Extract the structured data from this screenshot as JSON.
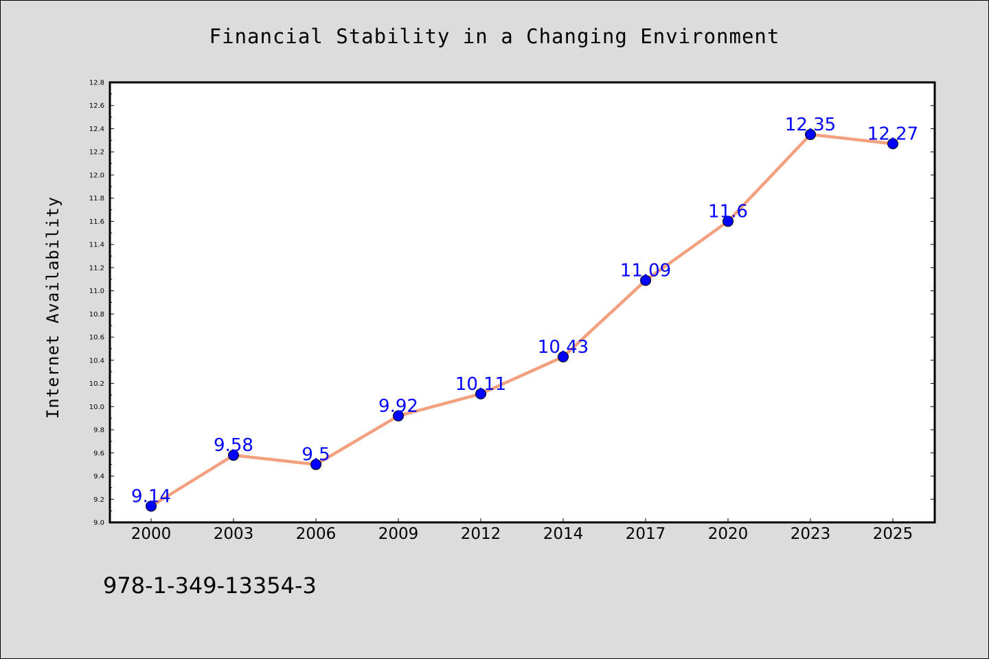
{
  "chart_data": {
    "type": "line",
    "title": "Financial Stability in a Changing Environment",
    "xlabel": "",
    "ylabel": "Internet Availability",
    "categories": [
      "2000",
      "2003",
      "2006",
      "2009",
      "2012",
      "2014",
      "2017",
      "2020",
      "2023",
      "2025"
    ],
    "series": [
      {
        "values": [
          9.14,
          9.58,
          9.5,
          9.92,
          10.11,
          10.43,
          11.09,
          11.6,
          12.35,
          12.27
        ],
        "labels": [
          "9.14",
          "9.58",
          "9.5",
          "9.92",
          "10.11",
          "10.43",
          "11.09",
          "11.6",
          "12.35",
          "12.27"
        ]
      }
    ],
    "ylim": [
      9.0,
      12.8
    ],
    "yticks": [
      "9.0",
      "9.2",
      "9.4",
      "9.6",
      "9.8",
      "10.0",
      "10.2",
      "10.4",
      "10.6",
      "10.8",
      "11.0",
      "11.2",
      "11.4",
      "11.6",
      "11.8",
      "12.0",
      "12.2",
      "12.4",
      "12.6",
      "12.8"
    ],
    "grid": false,
    "legend": "none",
    "colors": {
      "line": "#f4a07e",
      "marker": "#0000ff",
      "data_label": "#0000ff",
      "background": "#dcdcdc",
      "plot_background": "#ffffff"
    }
  },
  "footnote": "978-1-349-13354-3"
}
